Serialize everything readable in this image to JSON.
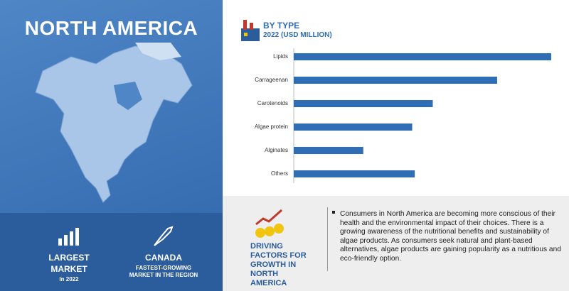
{
  "chart_data": {
    "type": "bar",
    "title": "BY TYPE",
    "subtitle": "2022 (USD MILLION)",
    "categories": [
      "Lipids",
      "Carrageenan",
      "Carotenoids",
      "Algae protein",
      "Alginates",
      "Others"
    ],
    "values": [
      100,
      79,
      54,
      46,
      27,
      47
    ],
    "color": "#2f6db5"
  },
  "panel": {
    "title": "NORTH AMERICA",
    "stats": [
      {
        "label": "LARGEST MARKET",
        "sub": "In 2022"
      },
      {
        "label": "CANADA",
        "sub": "FASTEST-GROWING MARKET IN THE REGION"
      }
    ]
  },
  "drivers": {
    "heading": "DRIVING FACTORS FOR GROWTH IN NORTH AMERICA",
    "text": "Consumers in North America are becoming more conscious of their health and the environmental impact of their choices. There is a growing awareness of the nutritional benefits and sustainability of algae products. As consumers seek natural and plant-based alternatives, algae products are gaining popularity as a nutritious and eco-friendly option."
  }
}
